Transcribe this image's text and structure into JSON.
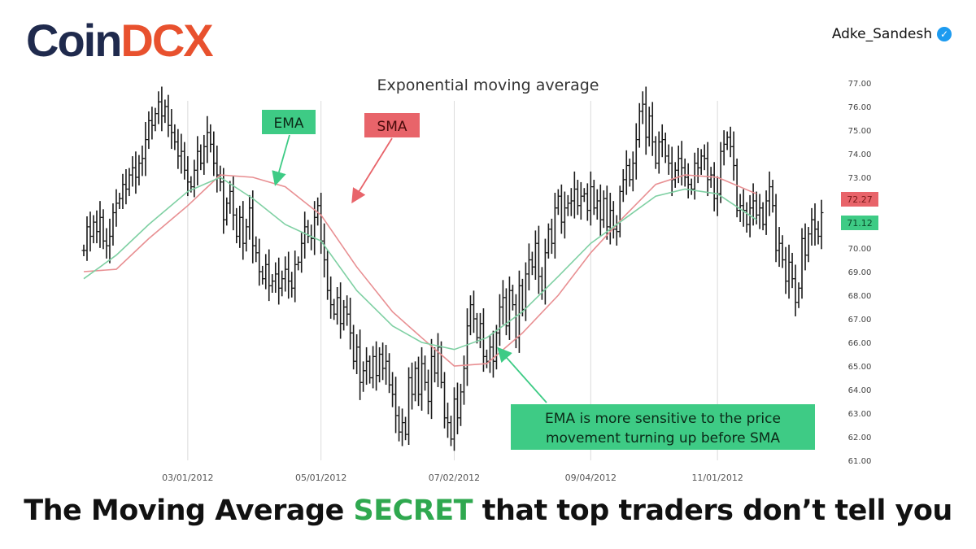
{
  "brand": {
    "logo_part1": "Coin",
    "logo_part2": "DCX"
  },
  "author": {
    "name": "Adke_Sandesh",
    "verified_icon": "verified-badge-icon"
  },
  "headline": {
    "part1": "The Moving Average ",
    "highlight": "SECRET",
    "part2": " that top traders don’t tell you"
  },
  "colors": {
    "ema": "#7fd0a3",
    "sma": "#e88f92",
    "ema_label_bg": "#3ecb85",
    "sma_label_bg": "#e8646a",
    "accent": "#2fa84f",
    "logo_dark": "#1f2a4d",
    "logo_orange": "#e8512e"
  },
  "chart_data": {
    "type": "line",
    "title": "Exponential moving average",
    "xlabel": "",
    "ylabel": "",
    "ylim": [
      61,
      77
    ],
    "y_ticks": [
      "77.00",
      "76.00",
      "75.00",
      "74.00",
      "73.00",
      "72.00",
      "71.00",
      "70.00",
      "69.00",
      "68.00",
      "67.00",
      "66.00",
      "65.00",
      "64.00",
      "63.00",
      "62.00",
      "61.00"
    ],
    "x_ticks": [
      "03/01/2012",
      "05/01/2012",
      "07/02/2012",
      "09/04/2012",
      "11/01/2012"
    ],
    "x_tick_index": [
      32,
      73,
      114,
      156,
      195
    ],
    "grid": "vertical lines at x ticks",
    "price_close": [
      69.9,
      70.9,
      70.5,
      71.1,
      70.7,
      71.3,
      70.3,
      70.1,
      70.5,
      71.5,
      71.9,
      72.1,
      72.7,
      72.5,
      73.1,
      73.4,
      73.0,
      73.6,
      73.8,
      74.6,
      75.4,
      75.2,
      75.7,
      76.2,
      75.6,
      76.0,
      75.2,
      74.9,
      74.5,
      73.9,
      74.1,
      73.3,
      72.8,
      72.6,
      73.3,
      74.1,
      73.6,
      74.3,
      74.9,
      74.4,
      73.6,
      73.1,
      72.8,
      71.2,
      71.9,
      72.4,
      71.4,
      70.5,
      71.3,
      70.2,
      70.9,
      71.7,
      70.1,
      69.8,
      69.0,
      68.7,
      69.3,
      68.4,
      68.6,
      68.9,
      68.3,
      68.7,
      69.1,
      68.6,
      68.3,
      69.3,
      69.4,
      70.2,
      70.9,
      70.5,
      70.4,
      71.3,
      71.8,
      70.3,
      69.5,
      68.2,
      67.6,
      67.2,
      67.9,
      66.8,
      67.5,
      67.2,
      66.4,
      65.2,
      65.8,
      64.3,
      64.8,
      65.2,
      64.5,
      65.4,
      64.6,
      65.5,
      64.9,
      65.2,
      64.2,
      63.8,
      62.9,
      62.2,
      62.6,
      62.1,
      64.5,
      63.8,
      64.9,
      63.8,
      65.1,
      64.3,
      63.5,
      65.4,
      64.7,
      65.8,
      64.3,
      62.8,
      62.6,
      61.9,
      63.6,
      62.8,
      63.9,
      64.9,
      66.7,
      67.6,
      67.0,
      66.2,
      66.8,
      65.4,
      65.2,
      65.8,
      65.2,
      66.4,
      67.5,
      67.9,
      66.7,
      68.2,
      67.6,
      66.2,
      68.4,
      67.4,
      68.9,
      69.5,
      69.2,
      70.2,
      68.8,
      68.2,
      69.8,
      70.8,
      70.2,
      71.7,
      72.2,
      71.1,
      71.7,
      71.9,
      72.0,
      72.5,
      71.8,
      72.2,
      72.3,
      71.6,
      72.6,
      71.7,
      72.0,
      71.2,
      72.1,
      70.9,
      71.6,
      70.8,
      70.7,
      72.4,
      72.9,
      73.5,
      72.9,
      73.6,
      74.6,
      75.8,
      76.1,
      74.7,
      75.6,
      74.5,
      73.6,
      74.5,
      74.6,
      73.9,
      73.6,
      72.9,
      73.3,
      73.8,
      73.4,
      73.0,
      72.7,
      72.5,
      73.6,
      73.4,
      73.9,
      73.8,
      72.9,
      73.1,
      72.1,
      72.3,
      74.1,
      74.4,
      74.7,
      74.3,
      73.5,
      71.6,
      71.8,
      71.6,
      71.0,
      71.7,
      72.0,
      71.4,
      71.7,
      71.0,
      72.0,
      72.6,
      71.8,
      69.9,
      70.2,
      69.5,
      68.6,
      69.4,
      68.7,
      67.7,
      68.3,
      70.4,
      69.7,
      70.6,
      71.2,
      70.8,
      70.5,
      71.5
    ],
    "series": [
      {
        "name": "EMA",
        "x_index": [
          0,
          10,
          20,
          32,
          42,
          52,
          62,
          73,
          84,
          95,
          104,
          114,
          124,
          135,
          146,
          156,
          166,
          176,
          185,
          195,
          207
        ],
        "values": [
          68.7,
          69.7,
          71.0,
          72.4,
          73.0,
          72.1,
          71.0,
          70.3,
          68.2,
          66.7,
          66.0,
          65.7,
          66.2,
          67.3,
          68.8,
          70.2,
          71.2,
          72.2,
          72.5,
          72.3,
          71.2
        ]
      },
      {
        "name": "SMA",
        "x_index": [
          0,
          10,
          20,
          32,
          42,
          52,
          62,
          73,
          84,
          95,
          104,
          114,
          124,
          135,
          146,
          156,
          166,
          176,
          185,
          195,
          207
        ],
        "values": [
          69.0,
          69.1,
          70.4,
          71.8,
          73.1,
          73.0,
          72.6,
          71.4,
          69.2,
          67.3,
          66.2,
          65.0,
          65.1,
          66.4,
          68.0,
          69.8,
          71.3,
          72.7,
          73.1,
          73.0,
          72.3
        ]
      }
    ],
    "last_value_labels": [
      {
        "series": "SMA",
        "value": "72.27"
      },
      {
        "series": "EMA",
        "value": "71.12"
      }
    ],
    "annotations": [
      {
        "text": "EMA",
        "points_to": "EMA"
      },
      {
        "text": "SMA",
        "points_to": "SMA"
      },
      {
        "text": "EMA is more sensitive to the price movement turning up before SMA",
        "line1": "EMA is more sensitive to the price",
        "line2": "movement turning up before SMA",
        "points_to": "EMA"
      }
    ]
  }
}
